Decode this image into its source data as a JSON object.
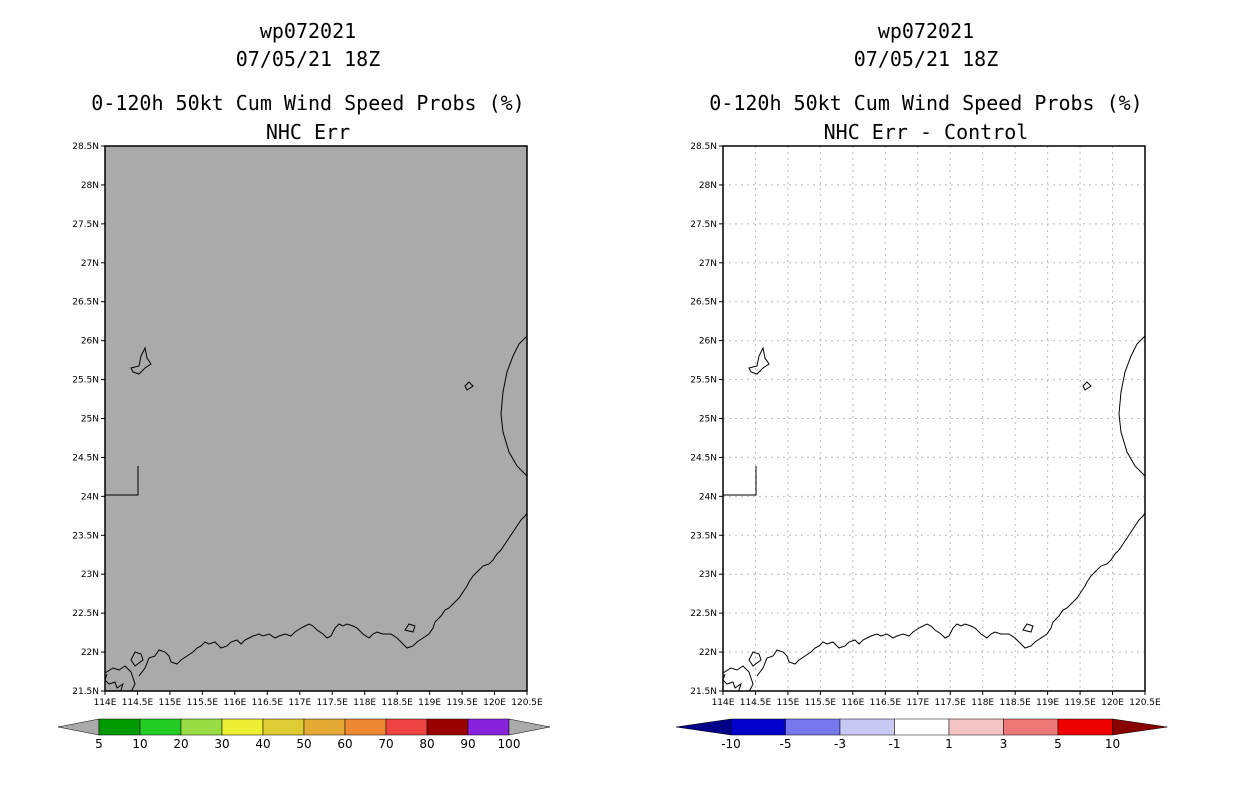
{
  "left": {
    "title_line1": "wp072021",
    "title_line2": "07/05/21 18Z",
    "title_line3": "0-120h 50kt Cum Wind Speed Probs (%)",
    "title_line4": "NHC Err",
    "background": "#aaaaaa",
    "colorbar": {
      "colors": [
        "#009900",
        "#22cc22",
        "#99dd44",
        "#eeee33",
        "#ddcc33",
        "#e5aa33",
        "#ee8833",
        "#ee4444",
        "#990000",
        "#8822dd"
      ],
      "labels": [
        "5",
        "10",
        "20",
        "30",
        "40",
        "50",
        "60",
        "70",
        "80",
        "90",
        "100"
      ],
      "end_color": "#aaaaaa"
    }
  },
  "right": {
    "title_line1": "wp072021",
    "title_line2": "07/05/21 18Z",
    "title_line3": "0-120h 50kt Cum Wind Speed Probs (%)",
    "title_line4": "NHC Err - Control",
    "background": "#ffffff",
    "colorbar": {
      "colors": [
        "#0000cc",
        "#7777ee",
        "#c8c8f4",
        "#ffffff",
        "#f4c4c4",
        "#ee7777",
        "#ee0000"
      ],
      "labels": [
        "-10",
        "-5",
        "-3",
        "-1",
        "1",
        "3",
        "5",
        "10"
      ],
      "left_end_color": "#000088",
      "right_end_color": "#880000"
    }
  },
  "lat_labels": [
    "21.5N",
    "22N",
    "22.5N",
    "23N",
    "23.5N",
    "24N",
    "24.5N",
    "25N",
    "25.5N",
    "26N",
    "26.5N",
    "27N",
    "27.5N",
    "28N",
    "28.5N"
  ],
  "lon_labels": [
    "114E",
    "114.5E",
    "115E",
    "115.5E",
    "116E",
    "116.5E",
    "117E",
    "117.5E",
    "118E",
    "118.5E",
    "119E",
    "119.5E",
    "120E",
    "120.5E"
  ]
}
